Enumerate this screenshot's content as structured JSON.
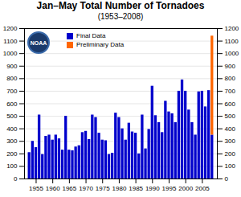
{
  "chart_data": {
    "type": "bar",
    "title": "Jan–May Total Number of Tornadoes",
    "subtitle": "(1953–2008)",
    "annotations": [
      "NOAA"
    ],
    "x": [
      1953,
      1954,
      1955,
      1956,
      1957,
      1958,
      1959,
      1960,
      1961,
      1962,
      1963,
      1964,
      1965,
      1966,
      1967,
      1968,
      1969,
      1970,
      1971,
      1972,
      1973,
      1974,
      1975,
      1976,
      1977,
      1978,
      1979,
      1980,
      1981,
      1982,
      1983,
      1984,
      1985,
      1986,
      1987,
      1988,
      1989,
      1990,
      1991,
      1992,
      1993,
      1994,
      1995,
      1996,
      1997,
      1998,
      1999,
      2000,
      2001,
      2002,
      2003,
      2004,
      2005,
      2006,
      2007,
      2008
    ],
    "series": [
      {
        "name": "Final Data",
        "color": "#0000cc",
        "values": [
          210,
          300,
          250,
          510,
          195,
          340,
          350,
          310,
          350,
          320,
          230,
          500,
          230,
          225,
          255,
          265,
          370,
          380,
          315,
          510,
          490,
          365,
          310,
          305,
          195,
          205,
          525,
          490,
          400,
          310,
          445,
          375,
          365,
          200,
          510,
          240,
          395,
          740,
          505,
          450,
          370,
          620,
          535,
          520,
          450,
          700,
          790,
          700,
          550,
          450,
          350,
          695,
          700,
          575,
          705,
          350
        ]
      },
      {
        "name": "Preliminary Data",
        "color": "#ff6600",
        "values": [
          null,
          null,
          null,
          null,
          null,
          null,
          null,
          null,
          null,
          null,
          null,
          null,
          null,
          null,
          null,
          null,
          null,
          null,
          null,
          null,
          null,
          null,
          null,
          null,
          null,
          null,
          null,
          null,
          null,
          null,
          null,
          null,
          null,
          null,
          null,
          null,
          null,
          null,
          null,
          null,
          null,
          null,
          null,
          null,
          null,
          null,
          null,
          null,
          null,
          null,
          null,
          null,
          null,
          null,
          null,
          790
        ]
      }
    ],
    "stacked": true,
    "xlim": [
      1951.5,
      2009.5
    ],
    "xticks": [
      1955,
      1960,
      1965,
      1970,
      1975,
      1980,
      1985,
      1990,
      1995,
      2000,
      2005
    ],
    "ylim": [
      0,
      1200
    ],
    "yticks": [
      0,
      100,
      200,
      300,
      400,
      500,
      600,
      700,
      800,
      900,
      1000,
      1100,
      1200
    ],
    "grid": true,
    "legend": "upper left"
  }
}
